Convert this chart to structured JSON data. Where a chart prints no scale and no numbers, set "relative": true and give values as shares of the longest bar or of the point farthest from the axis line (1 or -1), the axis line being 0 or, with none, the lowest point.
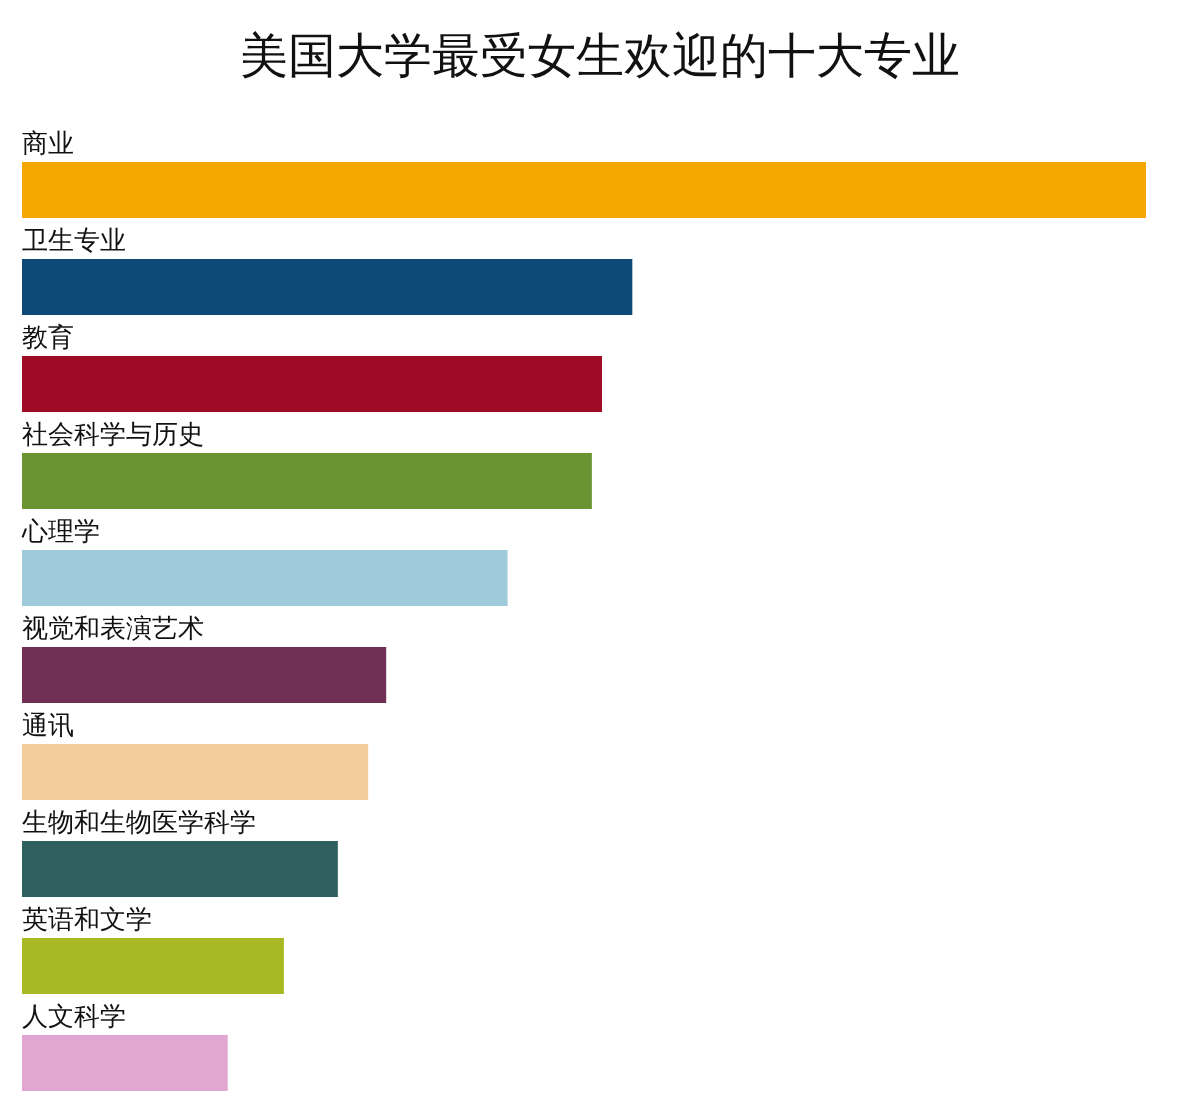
{
  "chart_data": {
    "type": "bar",
    "orientation": "horizontal",
    "relative": true,
    "title": "美国大学最受女生欢迎的十大专业",
    "categories": [
      "商业",
      "卫生专业",
      "教育",
      "社会科学与历史",
      "心理学",
      "视觉和表演艺术",
      "通讯",
      "生物和生物医学科学",
      "英语和文学",
      "人文科学"
    ],
    "values": [
      1,
      0.543,
      0.516,
      0.507,
      0.432,
      0.324,
      0.308,
      0.281,
      0.233,
      0.183
    ],
    "colors": [
      "#f5a800",
      "#0d4a78",
      "#9e0b24",
      "#6a9332",
      "#9ecadb",
      "#722f55",
      "#f2cc9b",
      "#2e6060",
      "#a9b924",
      "#e2a6d2"
    ]
  }
}
